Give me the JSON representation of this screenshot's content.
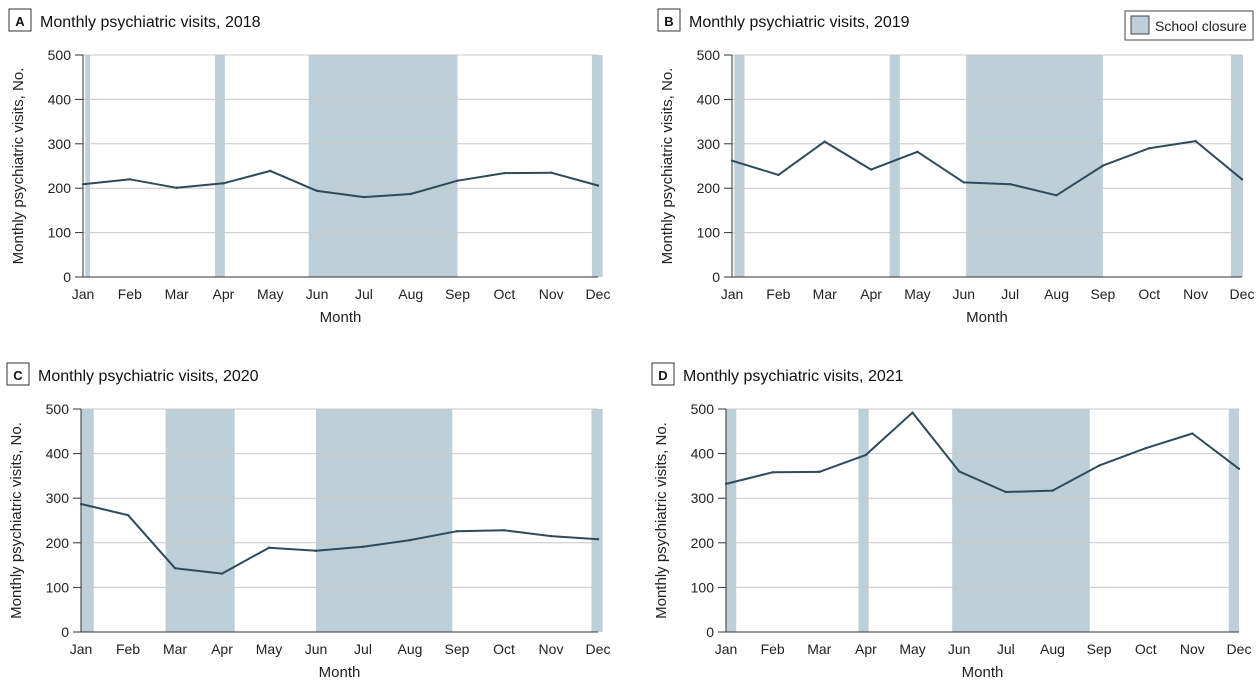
{
  "legend": {
    "label": "School closure",
    "color": "#bdd0d9"
  },
  "colors": {
    "line": "#2e4b5c",
    "closure": "#bdd0d9",
    "grid": "#c8c8c8"
  },
  "chart_data": [
    {
      "type": "line",
      "panel": "A",
      "title": "Monthly psychiatric visits, 2018",
      "xlabel": "Month",
      "ylabel": "Monthly psychiatric visits, No.",
      "categories": [
        "Jan",
        "Feb",
        "Mar",
        "Apr",
        "May",
        "Jun",
        "Jul",
        "Aug",
        "Sep",
        "Oct",
        "Nov",
        "Dec"
      ],
      "values": [
        209,
        220,
        201,
        211,
        239,
        194,
        180,
        187,
        217,
        234,
        235,
        206
      ],
      "ylim": [
        0,
        500
      ],
      "yticks": [
        0,
        100,
        200,
        300,
        400,
        500
      ],
      "grid": true,
      "closures": [
        [
          0.05,
          0.15
        ],
        [
          2.82,
          3.03
        ],
        [
          4.82,
          8.0
        ],
        [
          10.87,
          11.1
        ]
      ]
    },
    {
      "type": "line",
      "panel": "B",
      "title": "Monthly psychiatric visits, 2019",
      "xlabel": "Month",
      "ylabel": "Monthly psychiatric visits, No.",
      "categories": [
        "Jan",
        "Feb",
        "Mar",
        "Apr",
        "May",
        "Jun",
        "Jul",
        "Aug",
        "Sep",
        "Oct",
        "Nov",
        "Dec"
      ],
      "values": [
        262,
        230,
        305,
        242,
        282,
        213,
        209,
        184,
        251,
        290,
        306,
        220
      ],
      "ylim": [
        0,
        500
      ],
      "yticks": [
        0,
        100,
        200,
        300,
        400,
        500
      ],
      "grid": true,
      "closures": [
        [
          0.05,
          0.27
        ],
        [
          3.4,
          3.62
        ],
        [
          5.05,
          8.0
        ],
        [
          10.76,
          11.02
        ]
      ]
    },
    {
      "type": "line",
      "panel": "C",
      "title": "Monthly psychiatric visits, 2020",
      "xlabel": "Month",
      "ylabel": "Monthly psychiatric visits, No.",
      "categories": [
        "Jan",
        "Feb",
        "Mar",
        "Apr",
        "May",
        "Jun",
        "Jul",
        "Aug",
        "Sep",
        "Oct",
        "Nov",
        "Dec"
      ],
      "values": [
        287,
        262,
        143,
        131,
        189,
        182,
        191,
        206,
        226,
        228,
        215,
        208
      ],
      "ylim": [
        0,
        500
      ],
      "yticks": [
        0,
        100,
        200,
        300,
        400,
        500
      ],
      "grid": true,
      "closures": [
        [
          0.0,
          0.27
        ],
        [
          1.8,
          3.27
        ],
        [
          5.0,
          7.9
        ],
        [
          10.86,
          11.1
        ]
      ]
    },
    {
      "type": "line",
      "panel": "D",
      "title": "Monthly psychiatric visits, 2021",
      "xlabel": "Month",
      "ylabel": "Monthly psychiatric visits, No.",
      "categories": [
        "Jan",
        "Feb",
        "Mar",
        "Apr",
        "May",
        "Jun",
        "Jul",
        "Aug",
        "Sep",
        "Oct",
        "Nov",
        "Dec"
      ],
      "values": [
        332,
        358,
        359,
        397,
        492,
        360,
        314,
        317,
        373,
        412,
        445,
        366
      ],
      "ylim": [
        0,
        500
      ],
      "yticks": [
        0,
        100,
        200,
        300,
        400,
        500
      ],
      "grid": true,
      "closures": [
        [
          0.0,
          0.22
        ],
        [
          2.84,
          3.06
        ],
        [
          4.85,
          7.8
        ],
        [
          10.78,
          11.0
        ]
      ]
    }
  ]
}
